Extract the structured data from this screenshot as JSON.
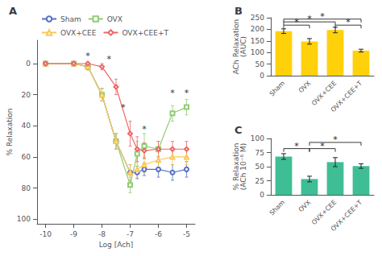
{
  "chart_data": [
    {
      "type": "line",
      "title": "A",
      "xlabel": "Log [Ach]",
      "ylabel": "% Relaxation",
      "xlim": [
        -10.3,
        -4.7
      ],
      "xticks": [
        -10,
        -9,
        -8,
        -7,
        -6,
        -5
      ],
      "ylim": [
        103,
        -15
      ],
      "yticks": [
        0,
        20,
        40,
        60,
        80,
        100
      ],
      "grid": false,
      "legend": "upper left",
      "x": [
        -10,
        -9,
        -8.5,
        -8,
        -7.5,
        -7,
        -6.75,
        -6.5,
        -6,
        -5.5,
        -5
      ],
      "series": [
        {
          "name": "Sham",
          "marker": "circle",
          "line_style": "solid",
          "values": [
            0,
            0,
            2,
            20,
            50,
            70,
            70,
            68,
            68,
            70,
            68
          ],
          "yerr": [
            0.5,
            0.5,
            2,
            4,
            5,
            5,
            4,
            4,
            5,
            5,
            5
          ]
        },
        {
          "name": "OVX",
          "marker": "square",
          "line_style": "solid",
          "values": [
            0,
            0,
            2,
            20,
            50,
            78,
            58,
            53,
            55,
            32,
            28
          ],
          "yerr": [
            0.5,
            0.5,
            2,
            4,
            5,
            5,
            8,
            8,
            5,
            5,
            5
          ]
        },
        {
          "name": "OVX+CEE",
          "marker": "triangle",
          "line_style": "solid",
          "values": [
            0,
            0,
            2,
            20,
            50,
            70,
            68,
            65,
            62,
            60,
            60
          ],
          "yerr": [
            0.5,
            0.5,
            2,
            4,
            5,
            5,
            5,
            5,
            5,
            5,
            5
          ]
        },
        {
          "name": "OVX+CEE+T",
          "marker": "diamond",
          "line_style": "solid",
          "values": [
            0,
            0,
            0,
            2,
            15,
            45,
            55,
            56,
            55,
            55,
            55
          ],
          "yerr": [
            0.5,
            0.5,
            0.5,
            2,
            5,
            8,
            8,
            5,
            5,
            5,
            5
          ]
        }
      ],
      "annotations": [
        {
          "text": "*",
          "x": -8.5,
          "y": -5
        },
        {
          "text": "*",
          "x": -7.75,
          "y": -3
        },
        {
          "text": "*",
          "x": -7.25,
          "y": 28
        },
        {
          "text": "*",
          "x": -6.5,
          "y": 42
        },
        {
          "text": "*",
          "x": -5.5,
          "y": 19
        },
        {
          "text": "*",
          "x": -5,
          "y": 19
        }
      ]
    },
    {
      "type": "bar",
      "title": "B",
      "ylabel": "ACh Relaxation\n(AUC)",
      "categories": [
        "Sham",
        "OVX",
        "OVX+CEE",
        "OVX+CEE+T"
      ],
      "values": [
        192,
        148,
        197,
        108
      ],
      "errors": [
        10,
        12,
        12,
        6
      ],
      "ylim": [
        0,
        250
      ],
      "yticks": [
        0,
        50,
        100,
        150,
        200,
        250
      ],
      "grid": false,
      "brackets": [
        {
          "from": "Sham",
          "to": "OVX",
          "y": 218,
          "label": "*"
        },
        {
          "from": "Sham",
          "to": "OVX+CEE",
          "y": 232,
          "label": "*"
        },
        {
          "from": "Sham",
          "to": "OVX+CEE+T",
          "y": 244,
          "label": "*"
        },
        {
          "from": "OVX+CEE",
          "to": "OVX+CEE+T",
          "y": 218,
          "label": "*"
        }
      ]
    },
    {
      "type": "bar",
      "title": "C",
      "ylabel": "% Relaxation\n(ACh 10⁻⁶ M)",
      "categories": [
        "Sham",
        "OVX",
        "OVX+CEE",
        "OVX+CEE+T"
      ],
      "values": [
        68,
        28,
        58,
        51
      ],
      "errors": [
        5,
        5,
        8,
        4
      ],
      "ylim": [
        0,
        100
      ],
      "yticks": [
        0,
        25,
        50,
        75,
        100
      ],
      "grid": false,
      "brackets": [
        {
          "from": "Sham",
          "to": "OVX",
          "y": 82,
          "label": "*"
        },
        {
          "from": "OVX",
          "to": "OVX+CEE",
          "y": 82,
          "label": "*"
        },
        {
          "from": "OVX",
          "to": "OVX+CEE+T",
          "y": 93,
          "label": "*"
        }
      ]
    }
  ]
}
